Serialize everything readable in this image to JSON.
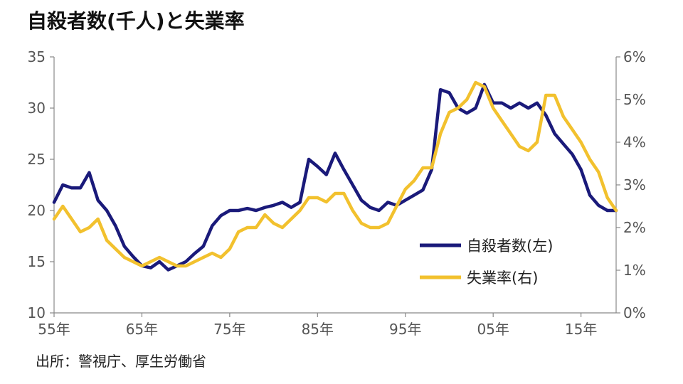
{
  "chart_data": {
    "type": "line",
    "title": "自殺者数(千人)と失業率",
    "source": "出所：警視庁、厚生労働省",
    "x_ticks": [
      "55年",
      "65年",
      "75年",
      "85年",
      "95年",
      "05年",
      "15年"
    ],
    "x_tick_years": [
      1955,
      1965,
      1975,
      1985,
      1995,
      2005,
      2015
    ],
    "y_left": {
      "ticks": [
        "35",
        "30",
        "25",
        "20",
        "15",
        "10"
      ],
      "range": [
        10,
        35
      ]
    },
    "y_right": {
      "ticks": [
        "6%",
        "5%",
        "4%",
        "3%",
        "2%",
        "1%",
        "0%"
      ],
      "range": [
        0,
        6
      ]
    },
    "x_range": [
      1955,
      2019
    ],
    "series": [
      {
        "name": "自殺者数(左)",
        "axis": "left",
        "color": "#1a1a7a",
        "x": [
          1955,
          1956,
          1957,
          1958,
          1959,
          1960,
          1961,
          1962,
          1963,
          1964,
          1965,
          1966,
          1967,
          1968,
          1969,
          1970,
          1971,
          1972,
          1973,
          1974,
          1975,
          1976,
          1977,
          1978,
          1979,
          1980,
          1981,
          1982,
          1983,
          1984,
          1985,
          1986,
          1987,
          1988,
          1989,
          1990,
          1991,
          1992,
          1993,
          1994,
          1995,
          1996,
          1997,
          1998,
          1999,
          2000,
          2001,
          2002,
          2003,
          2004,
          2005,
          2006,
          2007,
          2008,
          2009,
          2010,
          2011,
          2012,
          2013,
          2014,
          2015,
          2016,
          2017,
          2018,
          2019
        ],
        "y": [
          20.8,
          22.5,
          22.2,
          22.2,
          23.7,
          21.0,
          20.0,
          18.5,
          16.5,
          15.5,
          14.6,
          14.4,
          15.0,
          14.2,
          14.6,
          15.0,
          15.8,
          16.5,
          18.5,
          19.5,
          20.0,
          20.0,
          20.2,
          20.0,
          20.3,
          20.5,
          20.8,
          20.3,
          20.8,
          25.0,
          24.3,
          23.5,
          25.6,
          24.0,
          22.5,
          21.0,
          20.3,
          20.0,
          20.8,
          20.5,
          21.0,
          21.5,
          22.0,
          24.0,
          31.8,
          31.5,
          30.0,
          29.5,
          30.0,
          32.3,
          30.5,
          30.5,
          30.0,
          30.5,
          30.0,
          30.5,
          29.3,
          27.5,
          26.5,
          25.5,
          24.0,
          21.5,
          20.5,
          20.0,
          20.0
        ]
      },
      {
        "name": "失業率(右)",
        "axis": "right",
        "color": "#f2c12e",
        "x": [
          1955,
          1956,
          1957,
          1958,
          1959,
          1960,
          1961,
          1962,
          1963,
          1964,
          1965,
          1966,
          1967,
          1968,
          1969,
          1970,
          1971,
          1972,
          1973,
          1974,
          1975,
          1976,
          1977,
          1978,
          1979,
          1980,
          1981,
          1982,
          1983,
          1984,
          1985,
          1986,
          1987,
          1988,
          1989,
          1990,
          1991,
          1992,
          1993,
          1994,
          1995,
          1996,
          1997,
          1998,
          1999,
          2000,
          2001,
          2002,
          2003,
          2004,
          2005,
          2006,
          2007,
          2008,
          2009,
          2010,
          2011,
          2012,
          2013,
          2014,
          2015,
          2016,
          2017,
          2018,
          2019
        ],
        "y": [
          2.2,
          2.5,
          2.2,
          1.9,
          2.0,
          2.2,
          1.7,
          1.5,
          1.3,
          1.2,
          1.1,
          1.2,
          1.3,
          1.2,
          1.1,
          1.1,
          1.2,
          1.3,
          1.4,
          1.3,
          1.5,
          1.9,
          2.0,
          2.0,
          2.3,
          2.1,
          2.0,
          2.2,
          2.4,
          2.7,
          2.7,
          2.6,
          2.8,
          2.8,
          2.4,
          2.1,
          2.0,
          2.0,
          2.1,
          2.5,
          2.9,
          3.1,
          3.4,
          3.4,
          4.2,
          4.7,
          4.8,
          5.0,
          5.4,
          5.3,
          4.8,
          4.5,
          4.2,
          3.9,
          3.8,
          4.0,
          5.1,
          5.1,
          4.6,
          4.3,
          4.0,
          3.6,
          3.3,
          2.7,
          2.4
        ]
      }
    ],
    "legend_position": "inside-right",
    "grid": false
  }
}
